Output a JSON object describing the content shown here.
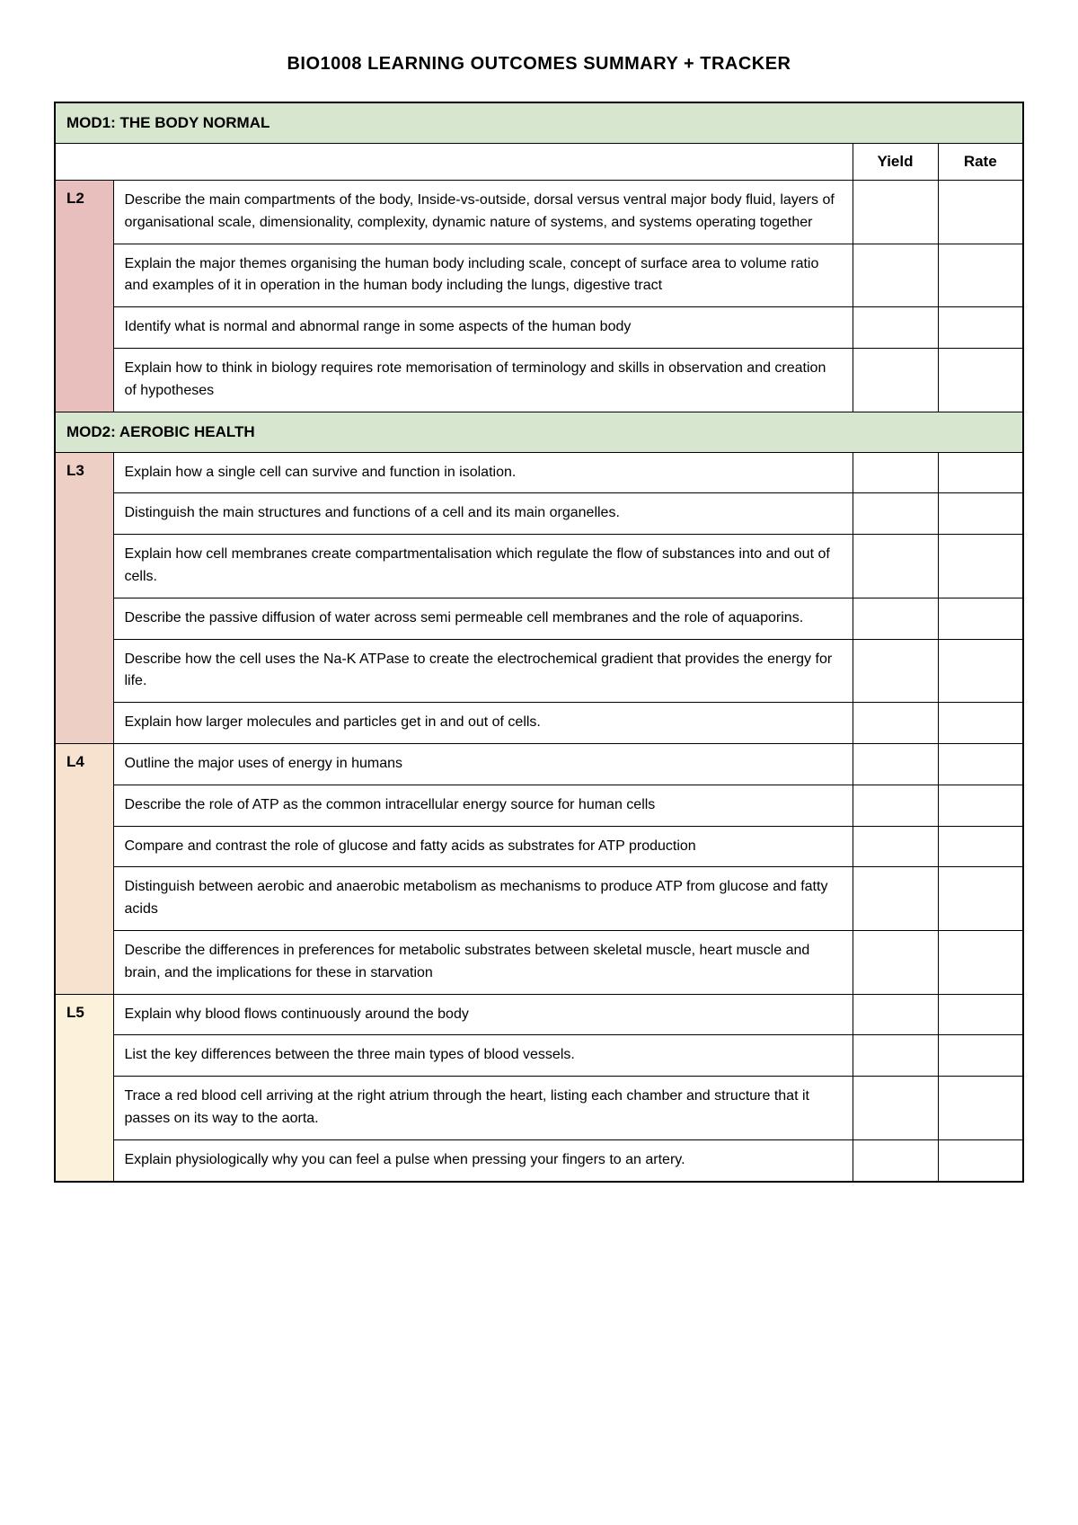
{
  "page_title": "BIO1008 LEARNING OUTCOMES SUMMARY + TRACKER",
  "columns": {
    "yield": "Yield",
    "rate": "Rate"
  },
  "colors": {
    "mod_header_bg": "#d7e6cf",
    "l2_bg": "#e8bfbc",
    "l3_bg": "#eecfc6",
    "l4_bg": "#f6e2cf",
    "l5_bg": "#fcf2db"
  },
  "modules": [
    {
      "title": "MOD1: THE BODY NORMAL",
      "show_column_headers": true,
      "lectures": [
        {
          "label": "L2",
          "bg_key": "l2_bg",
          "outcomes": [
            "Describe the main compartments of the body, Inside-vs-outside, dorsal versus ventral major body fluid, layers of organisational scale, dimensionality, complexity, dynamic nature of systems, and systems operating together",
            "Explain the major themes organising the human body including scale, concept of surface area to volume ratio and examples of it in operation in the human body including the lungs, digestive tract",
            "Identify what is normal and abnormal range in some aspects of the human body",
            "Explain how to think in biology requires rote memorisation of terminology and skills in observation and creation of hypotheses"
          ]
        }
      ]
    },
    {
      "title": "MOD2: AEROBIC HEALTH",
      "show_column_headers": false,
      "lectures": [
        {
          "label": "L3",
          "bg_key": "l3_bg",
          "outcomes": [
            "Explain how a single cell can survive and function in isolation.",
            "Distinguish the main structures and functions of a cell and its main organelles.",
            "Explain how cell membranes create compartmentalisation which regulate the flow of substances into and out of cells.",
            "Describe the passive diffusion of water across semi permeable cell membranes and the role of aquaporins.",
            "Describe how the cell uses the Na-K ATPase to create the electrochemical gradient that provides the energy for life.",
            "Explain how larger molecules and particles get in and out of cells."
          ]
        },
        {
          "label": "L4",
          "bg_key": "l4_bg",
          "outcomes": [
            "Outline the major uses of energy in humans",
            "Describe the role of ATP as the common intracellular energy source for human cells",
            "Compare and contrast the role of glucose and fatty acids as substrates for ATP production",
            "Distinguish between aerobic and anaerobic metabolism as mechanisms to produce ATP from glucose and fatty acids",
            "Describe the differences in preferences for metabolic substrates between skeletal muscle, heart muscle and brain, and the implications for these in starvation"
          ]
        },
        {
          "label": "L5",
          "bg_key": "l5_bg",
          "outcomes": [
            "Explain why blood flows continuously around the body",
            "List the key differences between the three main types of blood vessels.",
            "Trace a red blood cell arriving at the right atrium through the heart, listing each chamber and structure that it passes on its way to the aorta.",
            "Explain physiologically why you can feel a pulse when pressing your fingers to an artery."
          ]
        }
      ]
    }
  ]
}
